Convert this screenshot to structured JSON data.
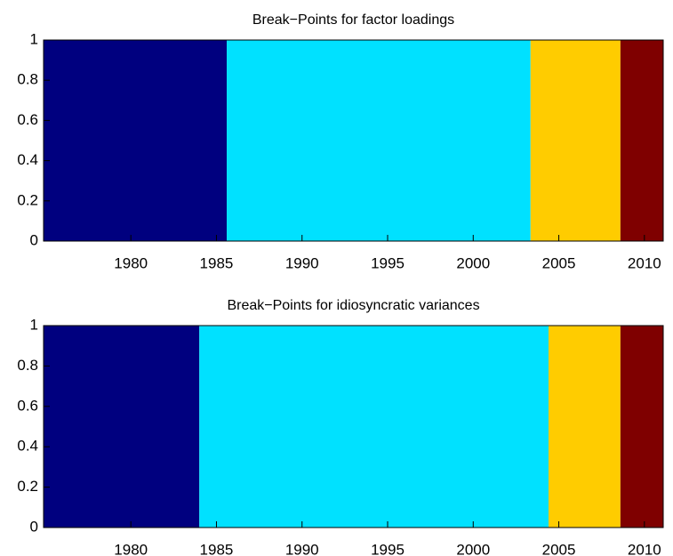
{
  "chart_data": [
    {
      "type": "histogram",
      "title": "Break−Points for factor loadings",
      "bins": [
        1974.9,
        1985.6,
        2003.35,
        2008.6,
        2011.1
      ],
      "values": [
        1,
        1,
        1,
        1
      ],
      "colors": [
        "#00007f",
        "#00e1ff",
        "#ffcc00",
        "#7f0000"
      ],
      "xlim": [
        1974.9,
        2011.1
      ],
      "xticks": [
        1980,
        1985,
        1990,
        1995,
        2000,
        2005,
        2010
      ],
      "ylim": [
        0,
        1
      ],
      "yticks": [
        0,
        0.2,
        0.4,
        0.6,
        0.8,
        1
      ]
    },
    {
      "type": "histogram",
      "title": "Break−Points for idiosyncratic variances",
      "bins": [
        1974.9,
        1984.0,
        2004.4,
        2008.6,
        2011.1
      ],
      "values": [
        1,
        1,
        1,
        1
      ],
      "colors": [
        "#00007f",
        "#00e1ff",
        "#ffcc00",
        "#7f0000"
      ],
      "xlim": [
        1974.9,
        2011.1
      ],
      "xticks": [
        1980,
        1985,
        1990,
        1995,
        2000,
        2005,
        2010
      ],
      "ylim": [
        0,
        1
      ],
      "yticks": [
        0,
        0.2,
        0.4,
        0.6,
        0.8,
        1
      ]
    }
  ]
}
